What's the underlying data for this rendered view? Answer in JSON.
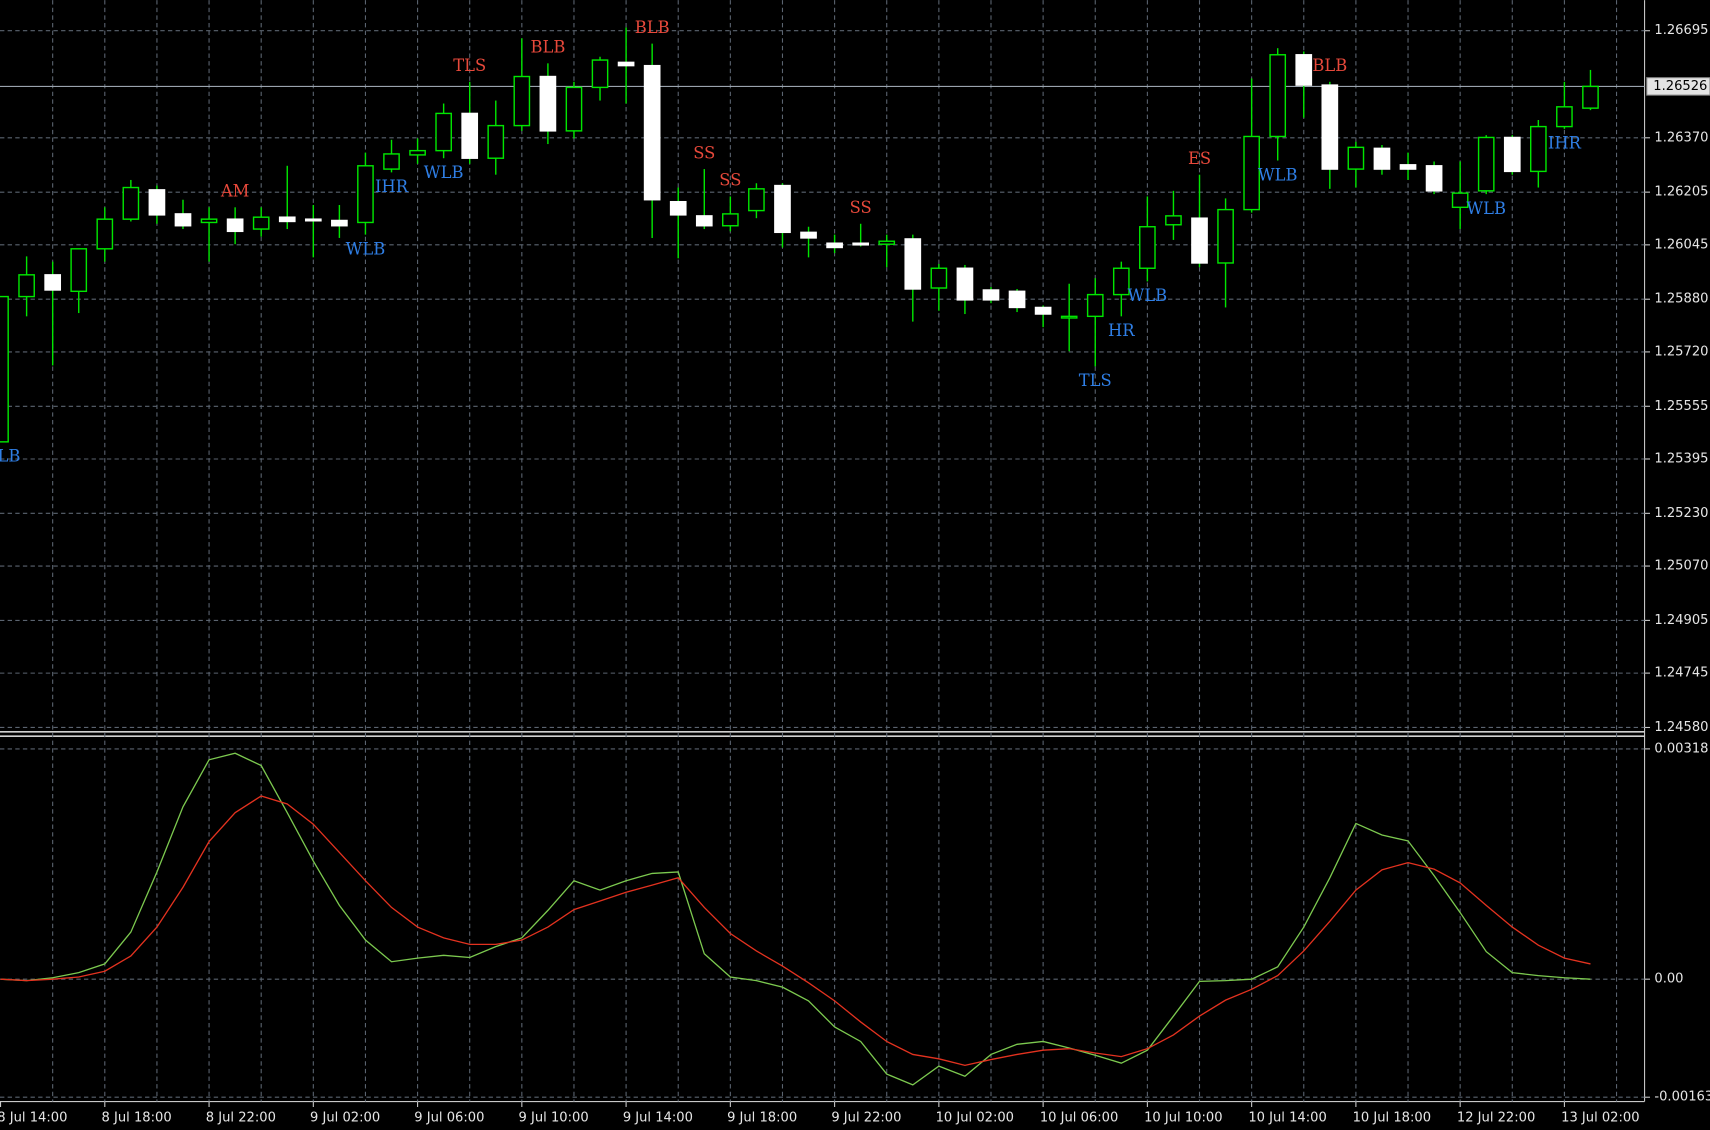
{
  "chart_data": [
    {
      "type": "candlestick",
      "categories": [
        "8 Jul 14:00",
        null,
        null,
        null,
        "8 Jul 18:00",
        null,
        null,
        null,
        "8 Jul 22:00",
        null,
        null,
        null,
        "9 Jul 02:00",
        null,
        null,
        null,
        "9 Jul 06:00",
        null,
        null,
        null,
        "9 Jul 10:00",
        null,
        null,
        null,
        "9 Jul 14:00",
        null,
        null,
        null,
        "9 Jul 18:00",
        null,
        null,
        null,
        "9 Jul 22:00",
        null,
        null,
        null,
        "10 Jul 02:00",
        null,
        null,
        null,
        "10 Jul 06:00",
        null,
        null,
        null,
        "10 Jul 10:00",
        null,
        null,
        null,
        "10 Jul 14:00",
        null,
        null,
        null,
        "10 Jul 18:00",
        null,
        null,
        null,
        "12 Jul 22:00",
        null,
        null,
        null,
        "13 Jul 02:00",
        null
      ],
      "open": [
        1.25447,
        1.25888,
        1.25954,
        1.25904,
        1.26033,
        1.26123,
        1.26212,
        1.26139,
        1.26113,
        1.26123,
        1.26093,
        1.26129,
        1.26123,
        1.26119,
        1.26113,
        1.26275,
        1.26318,
        1.26331,
        1.26444,
        1.26308,
        1.26407,
        1.26556,
        1.26391,
        1.26523,
        1.26599,
        1.26589,
        1.26176,
        1.26133,
        1.26103,
        1.26149,
        1.26225,
        1.26083,
        1.2605,
        1.2605,
        1.26047,
        1.26063,
        1.25914,
        1.25974,
        1.25908,
        1.25904,
        1.25855,
        1.25825,
        1.25828,
        1.25894,
        1.25974,
        1.26106,
        1.26126,
        1.2599,
        1.26152,
        1.26374,
        1.26622,
        1.2653,
        1.26275,
        1.26338,
        1.26288,
        1.26285,
        1.26159,
        1.26209,
        1.26371,
        1.26268,
        1.26404,
        1.2646
      ],
      "high": [
        1.25888,
        1.2601,
        1.25994,
        1.26033,
        1.26159,
        1.26242,
        1.26225,
        1.26182,
        1.26159,
        1.26159,
        1.26159,
        1.26285,
        1.26166,
        1.26166,
        1.26325,
        1.26364,
        1.26368,
        1.26474,
        1.2654,
        1.26483,
        1.26672,
        1.26596,
        1.2654,
        1.26616,
        1.26705,
        1.26656,
        1.26219,
        1.26275,
        1.26192,
        1.26232,
        1.26232,
        1.261,
        1.26076,
        1.26109,
        1.26076,
        1.26076,
        1.25987,
        1.25984,
        1.25917,
        1.25911,
        1.25861,
        1.25927,
        1.25944,
        1.25994,
        1.26192,
        1.26209,
        1.26258,
        1.26186,
        1.2655,
        1.26642,
        1.26632,
        1.2654,
        1.26358,
        1.26348,
        1.26325,
        1.26298,
        1.26298,
        1.26378,
        1.26378,
        1.26424,
        1.2654,
        1.26576
      ],
      "low": [
        1.25447,
        1.25828,
        1.25679,
        1.25838,
        1.25994,
        1.26116,
        1.26109,
        1.26093,
        1.25994,
        1.26047,
        1.2607,
        1.26093,
        1.26007,
        1.26066,
        1.26076,
        1.26265,
        1.26291,
        1.26308,
        1.26291,
        1.26258,
        1.26391,
        1.26351,
        1.26368,
        1.26483,
        1.26474,
        1.26066,
        1.26004,
        1.26093,
        1.26086,
        1.26126,
        1.26037,
        1.26007,
        1.2602,
        1.2604,
        1.25977,
        1.25812,
        1.25845,
        1.25835,
        1.25868,
        1.25841,
        1.25795,
        1.25722,
        1.25676,
        1.25828,
        1.25934,
        1.2606,
        1.25977,
        1.25855,
        1.26143,
        1.26301,
        1.26431,
        1.26215,
        1.26219,
        1.26258,
        1.26242,
        1.26199,
        1.26093,
        1.26199,
        1.26258,
        1.26219,
        1.26397,
        1.26454
      ],
      "close": [
        1.25888,
        1.25954,
        1.25908,
        1.26033,
        1.26123,
        1.26219,
        1.26136,
        1.26103,
        1.26123,
        1.26086,
        1.26129,
        1.26116,
        1.26119,
        1.26103,
        1.26285,
        1.26321,
        1.26331,
        1.26444,
        1.26308,
        1.26407,
        1.26556,
        1.26391,
        1.26523,
        1.26606,
        1.26589,
        1.26182,
        1.26136,
        1.26103,
        1.26139,
        1.26215,
        1.26083,
        1.26066,
        1.26037,
        1.26047,
        1.26056,
        1.25911,
        1.25974,
        1.25878,
        1.25878,
        1.25855,
        1.25835,
        1.25828,
        1.25894,
        1.25974,
        1.261,
        1.26133,
        1.2599,
        1.26152,
        1.26374,
        1.26622,
        1.2653,
        1.26275,
        1.26341,
        1.26275,
        1.26275,
        1.26209,
        1.26202,
        1.26371,
        1.26268,
        1.26404,
        1.26464,
        1.26526
      ],
      "labels_above": [
        null,
        null,
        null,
        null,
        null,
        null,
        null,
        null,
        null,
        "AM",
        null,
        null,
        null,
        null,
        null,
        null,
        null,
        null,
        "TLS",
        null,
        null,
        "BLB",
        null,
        null,
        null,
        "BLB",
        null,
        "SS",
        "SS",
        null,
        null,
        null,
        null,
        "SS",
        null,
        null,
        null,
        null,
        null,
        null,
        null,
        null,
        null,
        null,
        null,
        null,
        "ES",
        null,
        null,
        null,
        null,
        "BLB",
        null,
        null,
        null,
        null,
        null,
        null,
        null,
        null,
        null,
        null
      ],
      "labels_below": [
        "WLB",
        null,
        null,
        null,
        null,
        null,
        null,
        null,
        null,
        null,
        null,
        null,
        null,
        null,
        "WLB",
        "IHR",
        null,
        "WLB",
        null,
        null,
        null,
        null,
        null,
        null,
        null,
        null,
        null,
        null,
        null,
        null,
        null,
        null,
        null,
        null,
        null,
        null,
        null,
        null,
        null,
        null,
        null,
        null,
        "TLS",
        "HR",
        "WLB",
        null,
        null,
        null,
        null,
        "WLB",
        null,
        null,
        null,
        null,
        null,
        null,
        null,
        "WLB",
        null,
        null,
        "IHR",
        null
      ],
      "labels_above_color": "#e8493b",
      "labels_below_color": "#2f7fe6",
      "wick_color": "#00e600",
      "bull_color": "#00e600",
      "bear_color": "#ffffff",
      "current_price": 1.26526,
      "ylim": [
        1.2457,
        1.26788
      ],
      "yticks": [
        1.26695,
        {
          "value": 1.2637,
          "label": "1.26370"
        },
        1.26205,
        1.26045,
        {
          "value": 1.2588,
          "label": "1.25880"
        },
        {
          "value": 1.2572,
          "label": "1.25720"
        },
        1.25555,
        1.25395,
        {
          "value": 1.2523,
          "label": "1.25230"
        },
        {
          "value": 1.2507,
          "label": "1.25070"
        },
        1.24905,
        1.24745,
        {
          "value": 1.2458,
          "label": "1.24580"
        }
      ],
      "grid": true
    },
    {
      "type": "line",
      "series": [
        {
          "color": "#7cc94f",
          "values": [
            0,
            -2e-05,
            2e-05,
            9e-05,
            0.00021,
            0.00065,
            0.00148,
            0.00238,
            0.00303,
            0.00312,
            0.00295,
            0.0023,
            0.00163,
            0.00102,
            0.00054,
            0.00024,
            0.00029,
            0.00033,
            0.0003,
            0.00045,
            0.00057,
            0.00095,
            0.00136,
            0.00123,
            0.00136,
            0.00146,
            0.00148,
            0.00035,
            3e-05,
            -2e-05,
            -0.00011,
            -0.0003,
            -0.00066,
            -0.00086,
            -0.00131,
            -0.00146,
            -0.0012,
            -0.00134,
            -0.00104,
            -0.0009,
            -0.00086,
            -0.00095,
            -0.00105,
            -0.00116,
            -0.00098,
            -0.00051,
            -3e-05,
            -2e-05,
            0,
            0.00017,
            0.00072,
            0.0014,
            0.00215,
            0.00199,
            0.00191,
            0.00143,
            0.00092,
            0.00038,
            9e-05,
            5e-05,
            2e-05,
            0
          ]
        },
        {
          "color": "#e3321f",
          "values": [
            0,
            -2e-05,
            0,
            3e-05,
            0.00011,
            0.00032,
            0.00072,
            0.00127,
            0.0019,
            0.0023,
            0.00253,
            0.00242,
            0.00214,
            0.00175,
            0.00136,
            0.00099,
            0.00072,
            0.00057,
            0.00048,
            0.00048,
            0.00054,
            0.00072,
            0.00096,
            0.00108,
            0.0012,
            0.0013,
            0.0014,
            0.00099,
            0.00063,
            0.00039,
            0.00018,
            -5e-05,
            -0.0003,
            -0.00059,
            -0.00086,
            -0.00104,
            -0.0011,
            -0.00119,
            -0.00111,
            -0.00104,
            -0.00098,
            -0.00096,
            -0.00102,
            -0.00107,
            -0.00096,
            -0.00077,
            -0.00051,
            -0.00029,
            -0.00014,
            5e-05,
            0.00039,
            0.0008,
            0.00123,
            0.00151,
            0.00161,
            0.00152,
            0.00133,
            0.00102,
            0.00072,
            0.00047,
            0.00029,
            0.00021
          ]
        }
      ],
      "ylim": [
        -0.00169,
        0.00334
      ],
      "yticks": [
        0.00318,
        {
          "value": 0,
          "label": "0.00"
        },
        -0.00163
      ],
      "grid": true
    }
  ]
}
